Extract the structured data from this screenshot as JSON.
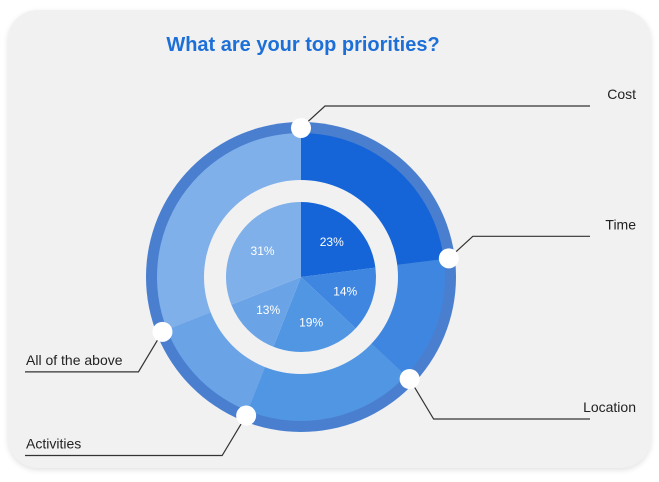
{
  "chart_data": {
    "type": "pie",
    "title": "What are your top priorities?",
    "categories": [
      "Cost",
      "Time",
      "Location",
      "Activities",
      "All of the above"
    ],
    "values": [
      23,
      14,
      19,
      13,
      31
    ],
    "value_labels": [
      "23%",
      "14%",
      "19%",
      "13%",
      "31%"
    ],
    "colors": {
      "Cost": "#1565d8",
      "Time": "#3f86e0",
      "Location": "#5196e3",
      "Activities": "#6aa4e7",
      "All of the above": "#80b0e9"
    },
    "outer_ring_color": "#4a7fcf",
    "title_color": "#1d6fd8"
  }
}
